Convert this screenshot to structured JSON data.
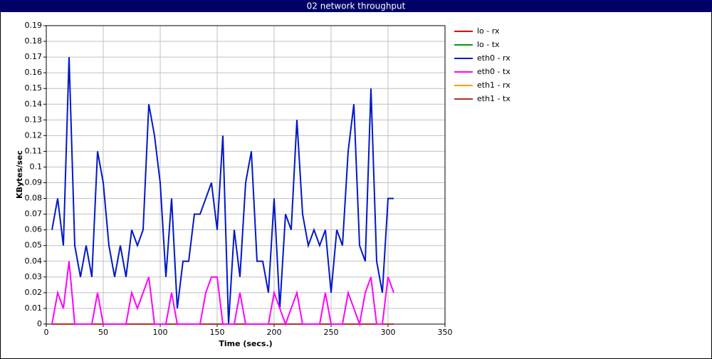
{
  "chart_data": {
    "type": "line",
    "title": "02 network throughput",
    "x_label": "Time (secs.)",
    "y_label": "KBytes/sec",
    "x": [
      5,
      10,
      15,
      20,
      25,
      30,
      35,
      40,
      45,
      50,
      55,
      60,
      65,
      70,
      75,
      80,
      85,
      90,
      95,
      100,
      105,
      110,
      115,
      120,
      125,
      130,
      135,
      140,
      145,
      150,
      155,
      160,
      165,
      170,
      175,
      180,
      185,
      190,
      195,
      200,
      205,
      210,
      215,
      220,
      225,
      230,
      235,
      240,
      245,
      250,
      255,
      260,
      265,
      270,
      275,
      280,
      285,
      290,
      295,
      300,
      305
    ],
    "series": [
      {
        "name": "lo - rx",
        "color": "#e00000",
        "values": [
          0,
          0,
          0,
          0,
          0,
          0,
          0,
          0,
          0,
          0,
          0,
          0,
          0,
          0,
          0,
          0,
          0,
          0,
          0,
          0,
          0,
          0,
          0,
          0,
          0,
          0,
          0,
          0,
          0,
          0,
          0,
          0,
          0,
          0,
          0,
          0,
          0,
          0,
          0,
          0,
          0,
          0,
          0,
          0,
          0,
          0,
          0,
          0,
          0,
          0,
          0,
          0,
          0,
          0,
          0,
          0,
          0,
          0,
          0,
          0,
          0
        ]
      },
      {
        "name": "lo - tx",
        "color": "#00a000",
        "values": [
          0,
          0,
          0,
          0,
          0,
          0,
          0,
          0,
          0,
          0,
          0,
          0,
          0,
          0,
          0,
          0,
          0,
          0,
          0,
          0,
          0,
          0,
          0,
          0,
          0,
          0,
          0,
          0,
          0,
          0,
          0,
          0,
          0,
          0,
          0,
          0,
          0,
          0,
          0,
          0,
          0,
          0,
          0,
          0,
          0,
          0,
          0,
          0,
          0,
          0,
          0,
          0,
          0,
          0,
          0,
          0,
          0,
          0,
          0,
          0,
          0
        ]
      },
      {
        "name": "eth1 - rx",
        "color": "#f0a000",
        "values": [
          0,
          0,
          0,
          0,
          0,
          0,
          0,
          0,
          0,
          0,
          0,
          0,
          0,
          0,
          0,
          0,
          0,
          0,
          0,
          0,
          0,
          0,
          0,
          0,
          0,
          0,
          0,
          0,
          0,
          0,
          0,
          0,
          0,
          0,
          0,
          0,
          0,
          0,
          0,
          0,
          0,
          0,
          0,
          0,
          0,
          0,
          0,
          0,
          0,
          0,
          0,
          0,
          0,
          0,
          0,
          0,
          0,
          0,
          0,
          0,
          0
        ]
      },
      {
        "name": "eth1 - tx",
        "color": "#b03030",
        "values": [
          0,
          0,
          0,
          0,
          0,
          0,
          0,
          0,
          0,
          0,
          0,
          0,
          0,
          0,
          0,
          0,
          0,
          0,
          0,
          0,
          0,
          0,
          0,
          0,
          0,
          0,
          0,
          0,
          0,
          0,
          0,
          0,
          0,
          0,
          0,
          0,
          0,
          0,
          0,
          0,
          0,
          0,
          0,
          0,
          0,
          0,
          0,
          0,
          0,
          0,
          0,
          0,
          0,
          0,
          0,
          0,
          0,
          0,
          0,
          0,
          0
        ]
      },
      {
        "name": "eth0 - rx",
        "color": "#0018c8",
        "values": [
          0.06,
          0.08,
          0.05,
          0.17,
          0.05,
          0.03,
          0.05,
          0.03,
          0.11,
          0.09,
          0.05,
          0.03,
          0.05,
          0.03,
          0.06,
          0.05,
          0.06,
          0.14,
          0.12,
          0.09,
          0.03,
          0.08,
          0.01,
          0.04,
          0.04,
          0.07,
          0.07,
          0.08,
          0.09,
          0.06,
          0.12,
          0,
          0.06,
          0.03,
          0.09,
          0.11,
          0.04,
          0.04,
          0.02,
          0.08,
          0.01,
          0.07,
          0.06,
          0.13,
          0.07,
          0.05,
          0.06,
          0.05,
          0.06,
          0.02,
          0.06,
          0.05,
          0.11,
          0.14,
          0.05,
          0.04,
          0.15,
          0.04,
          0.02,
          0.08,
          0.08
        ]
      },
      {
        "name": "eth0 - tx",
        "color": "#ff00ff",
        "values": [
          0,
          0.02,
          0.01,
          0.04,
          0,
          0,
          0,
          0,
          0.02,
          0,
          0,
          0,
          0,
          0,
          0.02,
          0.01,
          0.02,
          0.03,
          0,
          0,
          0,
          0.02,
          0,
          0,
          0,
          0,
          0,
          0.02,
          0.03,
          0.03,
          0,
          0,
          0,
          0.02,
          0,
          0,
          0,
          0,
          0,
          0.02,
          0.01,
          0,
          0.01,
          0.02,
          0,
          0,
          0,
          0,
          0.02,
          0,
          0,
          0,
          0.02,
          0.01,
          0,
          0.02,
          0.03,
          0,
          0,
          0.03,
          0.02
        ]
      }
    ],
    "legend_order": [
      0,
      1,
      4,
      5,
      2,
      3
    ],
    "xlim": [
      0,
      350
    ],
    "xticks": [
      0,
      50,
      100,
      150,
      200,
      250,
      300,
      350
    ],
    "ylim": [
      0,
      0.19
    ],
    "yticks": [
      0,
      0.01,
      0.02,
      0.03,
      0.04,
      0.05,
      0.06,
      0.07,
      0.08,
      0.09,
      0.1,
      0.11,
      0.12,
      0.13,
      0.14,
      0.15,
      0.16,
      0.17,
      0.18,
      0.19
    ],
    "grid": true,
    "legend": "right"
  }
}
